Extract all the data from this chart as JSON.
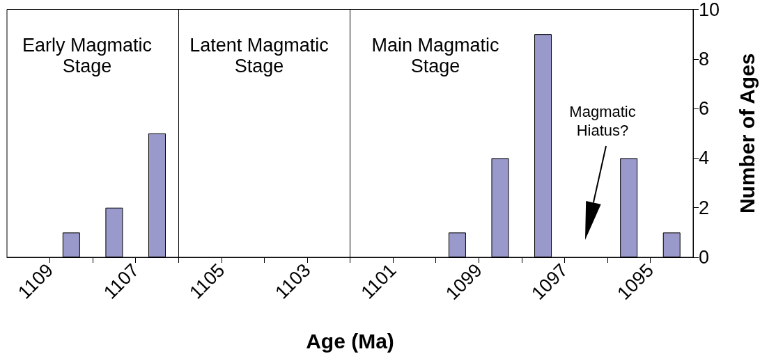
{
  "chart_data": {
    "type": "bar",
    "xlabel": "Age (Ma)",
    "ylabel": "Number of Ages",
    "x": [
      1108.5,
      1107.5,
      1106.5,
      1099.5,
      1098.5,
      1097.5,
      1095.5,
      1094.5
    ],
    "values": [
      1,
      2,
      5,
      1,
      4,
      9,
      4,
      1
    ],
    "color": "#9999cc",
    "xlim": [
      1110,
      1094
    ],
    "xticks": [
      1109,
      {
        "value": 1108,
        "label": null
      },
      1107,
      {
        "value": 1106,
        "label": null
      },
      1105,
      {
        "value": 1104,
        "label": null
      },
      1103,
      {
        "value": 1102,
        "label": null
      },
      1101,
      {
        "value": 1100,
        "label": null
      },
      1099,
      {
        "value": 1098,
        "label": null
      },
      1097,
      {
        "value": 1096,
        "label": null
      },
      1095
    ],
    "ylim": [
      0,
      10
    ],
    "yticks": [
      0,
      2,
      4,
      6,
      8,
      10
    ],
    "grid": false,
    "ref_lines": [
      {
        "axis": "x",
        "value": 1106,
        "label": null,
        "color": "#000000"
      },
      {
        "axis": "x",
        "value": 1102,
        "label": null,
        "color": "#000000"
      }
    ],
    "annotations": [
      "Early Magmatic\nStage",
      "Latent Magmatic\nStage",
      "Main Magmatic\nStage",
      "Magmatic\nHiatus?"
    ]
  }
}
